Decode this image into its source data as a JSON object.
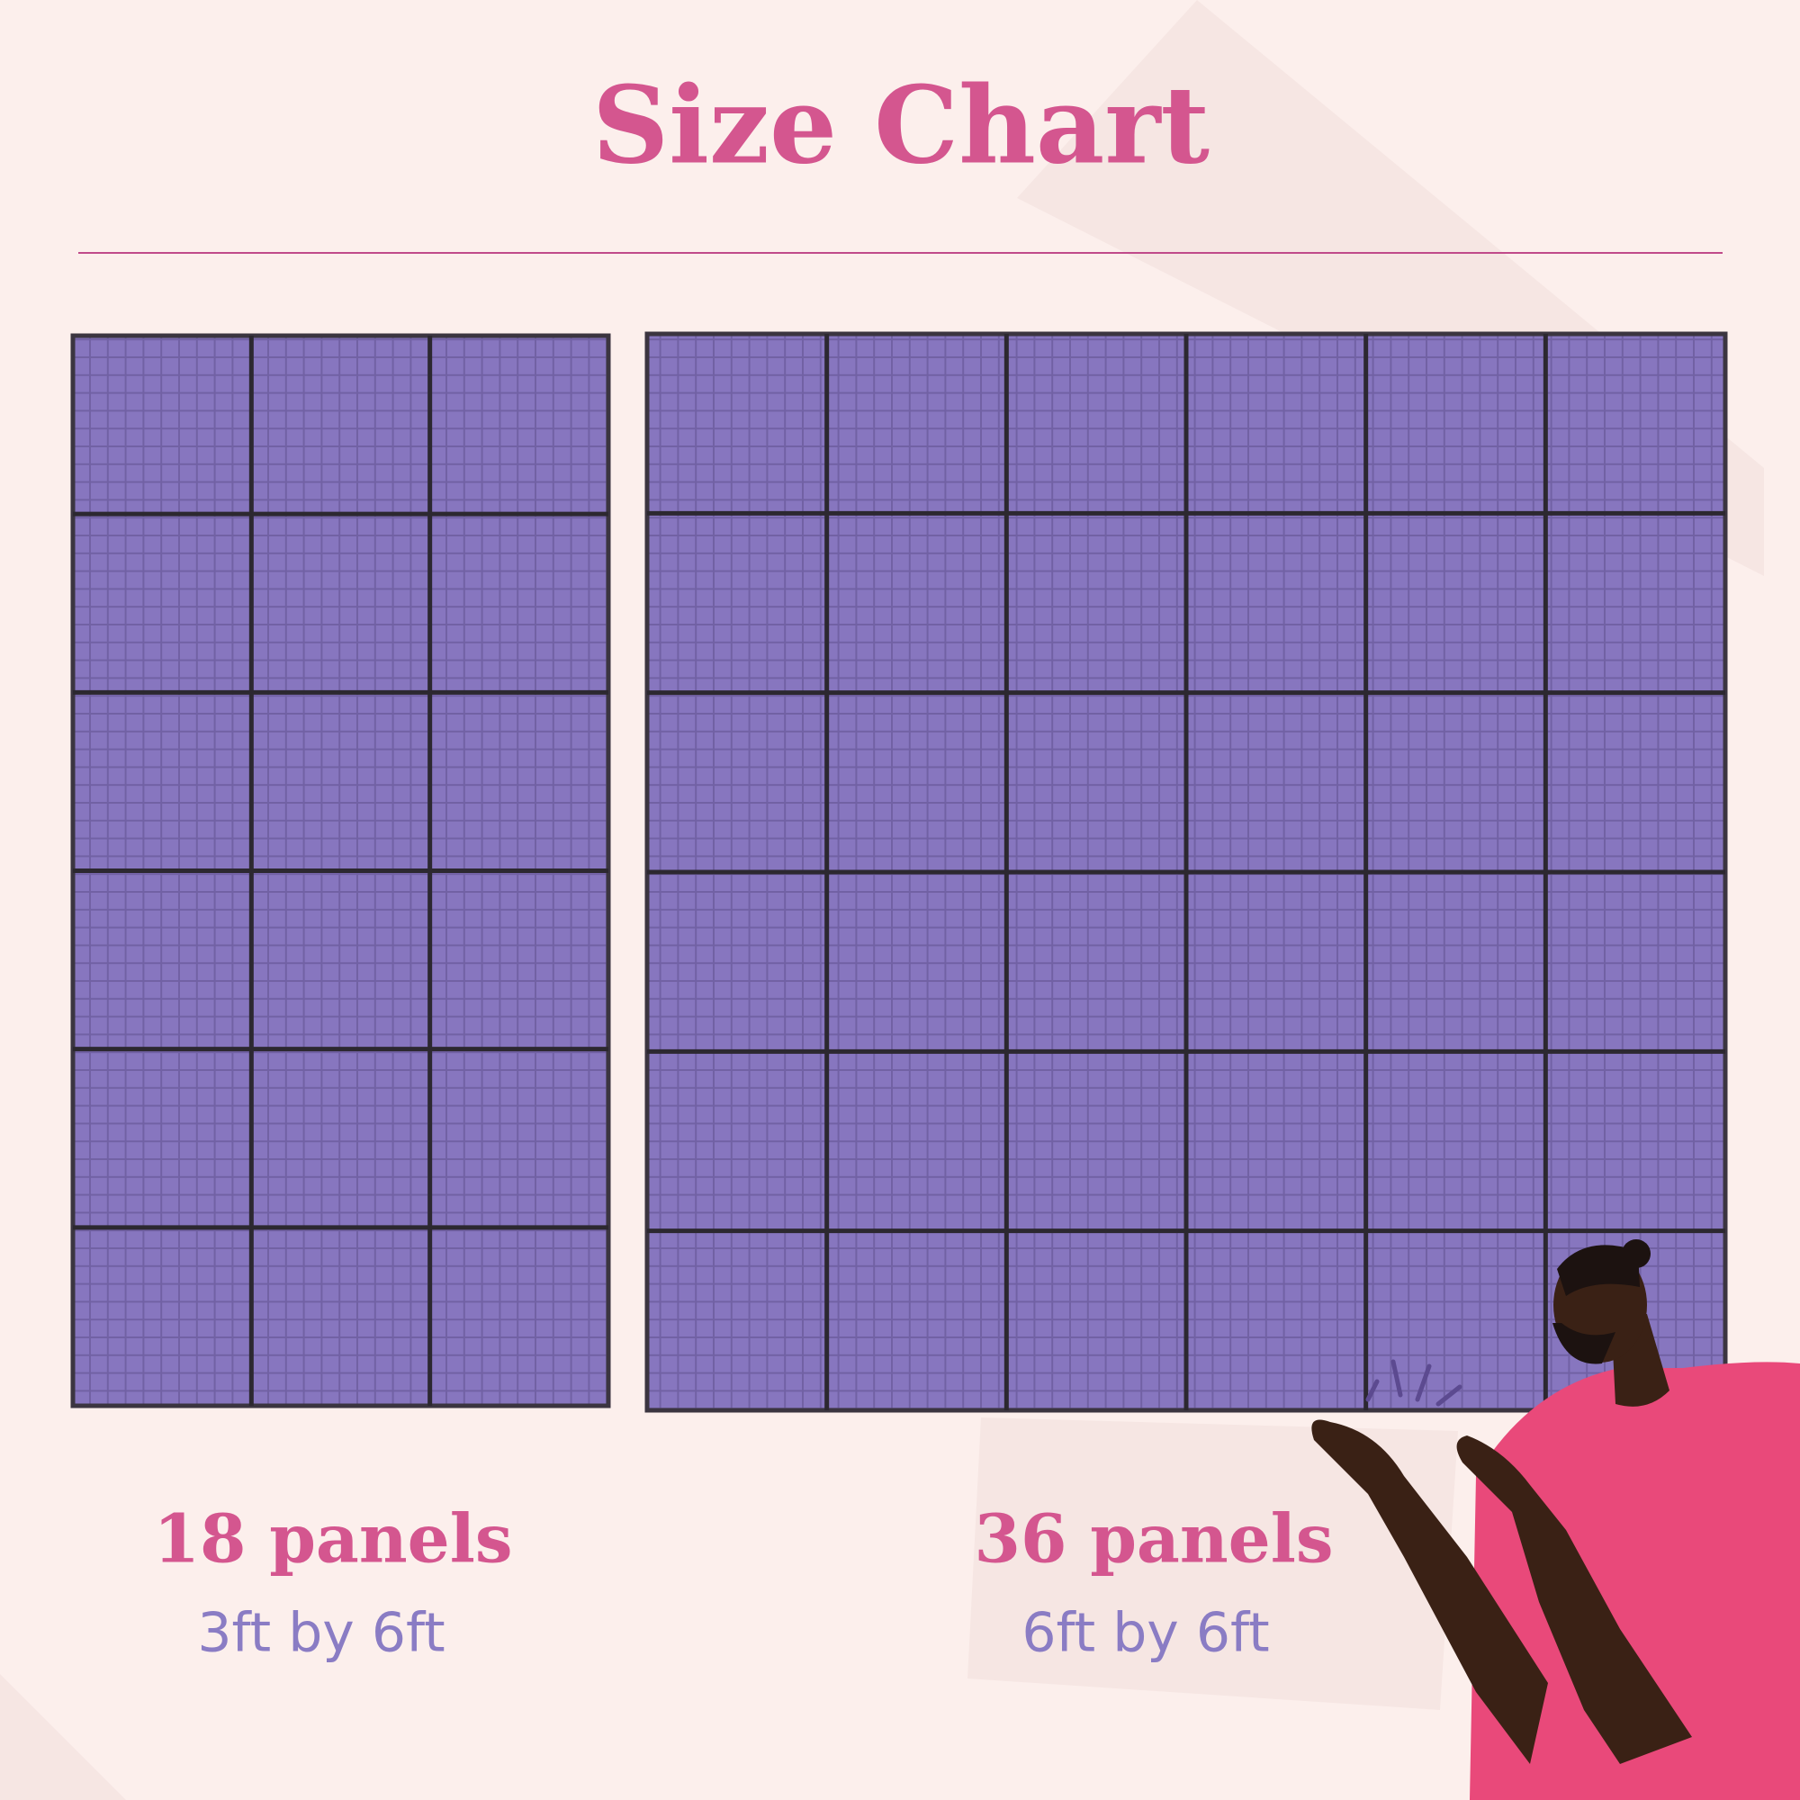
{
  "title": "Size Chart",
  "options": [
    {
      "panels": "18 panels",
      "size": "3ft by 6ft"
    },
    {
      "panels": "36 panels",
      "size": "6ft by 6ft"
    }
  ]
}
